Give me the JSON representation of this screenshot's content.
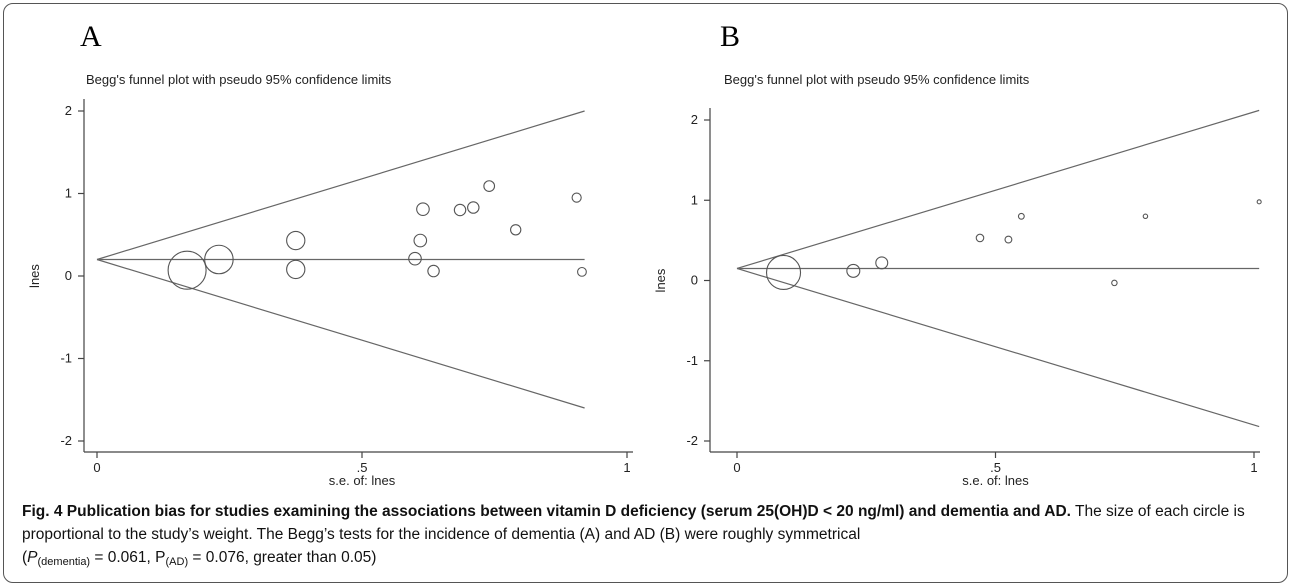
{
  "panels": [
    {
      "letter": "A",
      "title": "Begg's funnel plot with pseudo 95% confidence limits"
    },
    {
      "letter": "B",
      "title": "Begg's funnel plot with pseudo 95% confidence limits"
    }
  ],
  "chart_data": [
    {
      "type": "scatter",
      "title": "Begg's funnel plot with pseudo 95% confidence limits",
      "xlabel": "s.e. of: lnes",
      "ylabel": "lnes",
      "xlim": [
        0,
        1
      ],
      "ylim": [
        -2,
        2
      ],
      "x_ticks": [
        "0",
        ".5",
        "1"
      ],
      "y_ticks": [
        "-2",
        "-1",
        "0",
        "1",
        "2"
      ],
      "pooled_estimate": 0.2,
      "upper_limit_at_x": [
        [
          0,
          0.2
        ],
        [
          0.92,
          2.0
        ]
      ],
      "lower_limit_at_x": [
        [
          0,
          0.2
        ],
        [
          0.92,
          -1.6
        ]
      ],
      "points": [
        {
          "x": 0.17,
          "y": 0.07,
          "weight": 1.0
        },
        {
          "x": 0.23,
          "y": 0.2,
          "weight": 0.75
        },
        {
          "x": 0.375,
          "y": 0.43,
          "weight": 0.48
        },
        {
          "x": 0.375,
          "y": 0.08,
          "weight": 0.48
        },
        {
          "x": 0.6,
          "y": 0.21,
          "weight": 0.33
        },
        {
          "x": 0.61,
          "y": 0.43,
          "weight": 0.33
        },
        {
          "x": 0.615,
          "y": 0.81,
          "weight": 0.33
        },
        {
          "x": 0.635,
          "y": 0.06,
          "weight": 0.3
        },
        {
          "x": 0.685,
          "y": 0.8,
          "weight": 0.3
        },
        {
          "x": 0.71,
          "y": 0.83,
          "weight": 0.3
        },
        {
          "x": 0.74,
          "y": 1.09,
          "weight": 0.28
        },
        {
          "x": 0.79,
          "y": 0.56,
          "weight": 0.27
        },
        {
          "x": 0.905,
          "y": 0.95,
          "weight": 0.24
        },
        {
          "x": 0.915,
          "y": 0.05,
          "weight": 0.23
        }
      ]
    },
    {
      "type": "scatter",
      "title": "Begg's funnel plot with pseudo 95% confidence limits",
      "xlabel": "s.e. of: lnes",
      "ylabel": "lnes",
      "xlim": [
        0,
        1
      ],
      "ylim": [
        -2,
        2
      ],
      "x_ticks": [
        "0",
        ".5",
        "1"
      ],
      "y_ticks": [
        "-2",
        "-1",
        "0",
        "1",
        "2"
      ],
      "pooled_estimate": 0.15,
      "upper_limit_at_x": [
        [
          0,
          0.15
        ],
        [
          1.01,
          2.12
        ]
      ],
      "lower_limit_at_x": [
        [
          0,
          0.15
        ],
        [
          1.01,
          -1.82
        ]
      ],
      "points": [
        {
          "x": 0.09,
          "y": 0.1,
          "weight": 1.0
        },
        {
          "x": 0.225,
          "y": 0.12,
          "weight": 0.38
        },
        {
          "x": 0.28,
          "y": 0.22,
          "weight": 0.35
        },
        {
          "x": 0.47,
          "y": 0.53,
          "weight": 0.22
        },
        {
          "x": 0.525,
          "y": 0.51,
          "weight": 0.2
        },
        {
          "x": 0.55,
          "y": 0.8,
          "weight": 0.17
        },
        {
          "x": 0.73,
          "y": -0.03,
          "weight": 0.16
        },
        {
          "x": 0.79,
          "y": 0.8,
          "weight": 0.13
        },
        {
          "x": 1.01,
          "y": 0.98,
          "weight": 0.11
        }
      ]
    }
  ],
  "caption": {
    "fig_label": "Fig. 4",
    "bold_text": "Publication bias for studies examining the associations between vitamin D deficiency (serum 25(OH)D < 20 ng/ml) and dementia and AD.",
    "body": "The size of each circle is proportional to the study’s weight. The Begg’s tests for the incidence of dementia (A) and AD (B) were roughly symmetrical",
    "stats_open": "(",
    "p1_symbol": "P",
    "p1_sub": "(dementia)",
    "p1_value": " = 0.061, ",
    "p2_symbol": "P",
    "p2_sub": "(AD)",
    "p2_value": " = 0.076, greater than 0.05)"
  }
}
